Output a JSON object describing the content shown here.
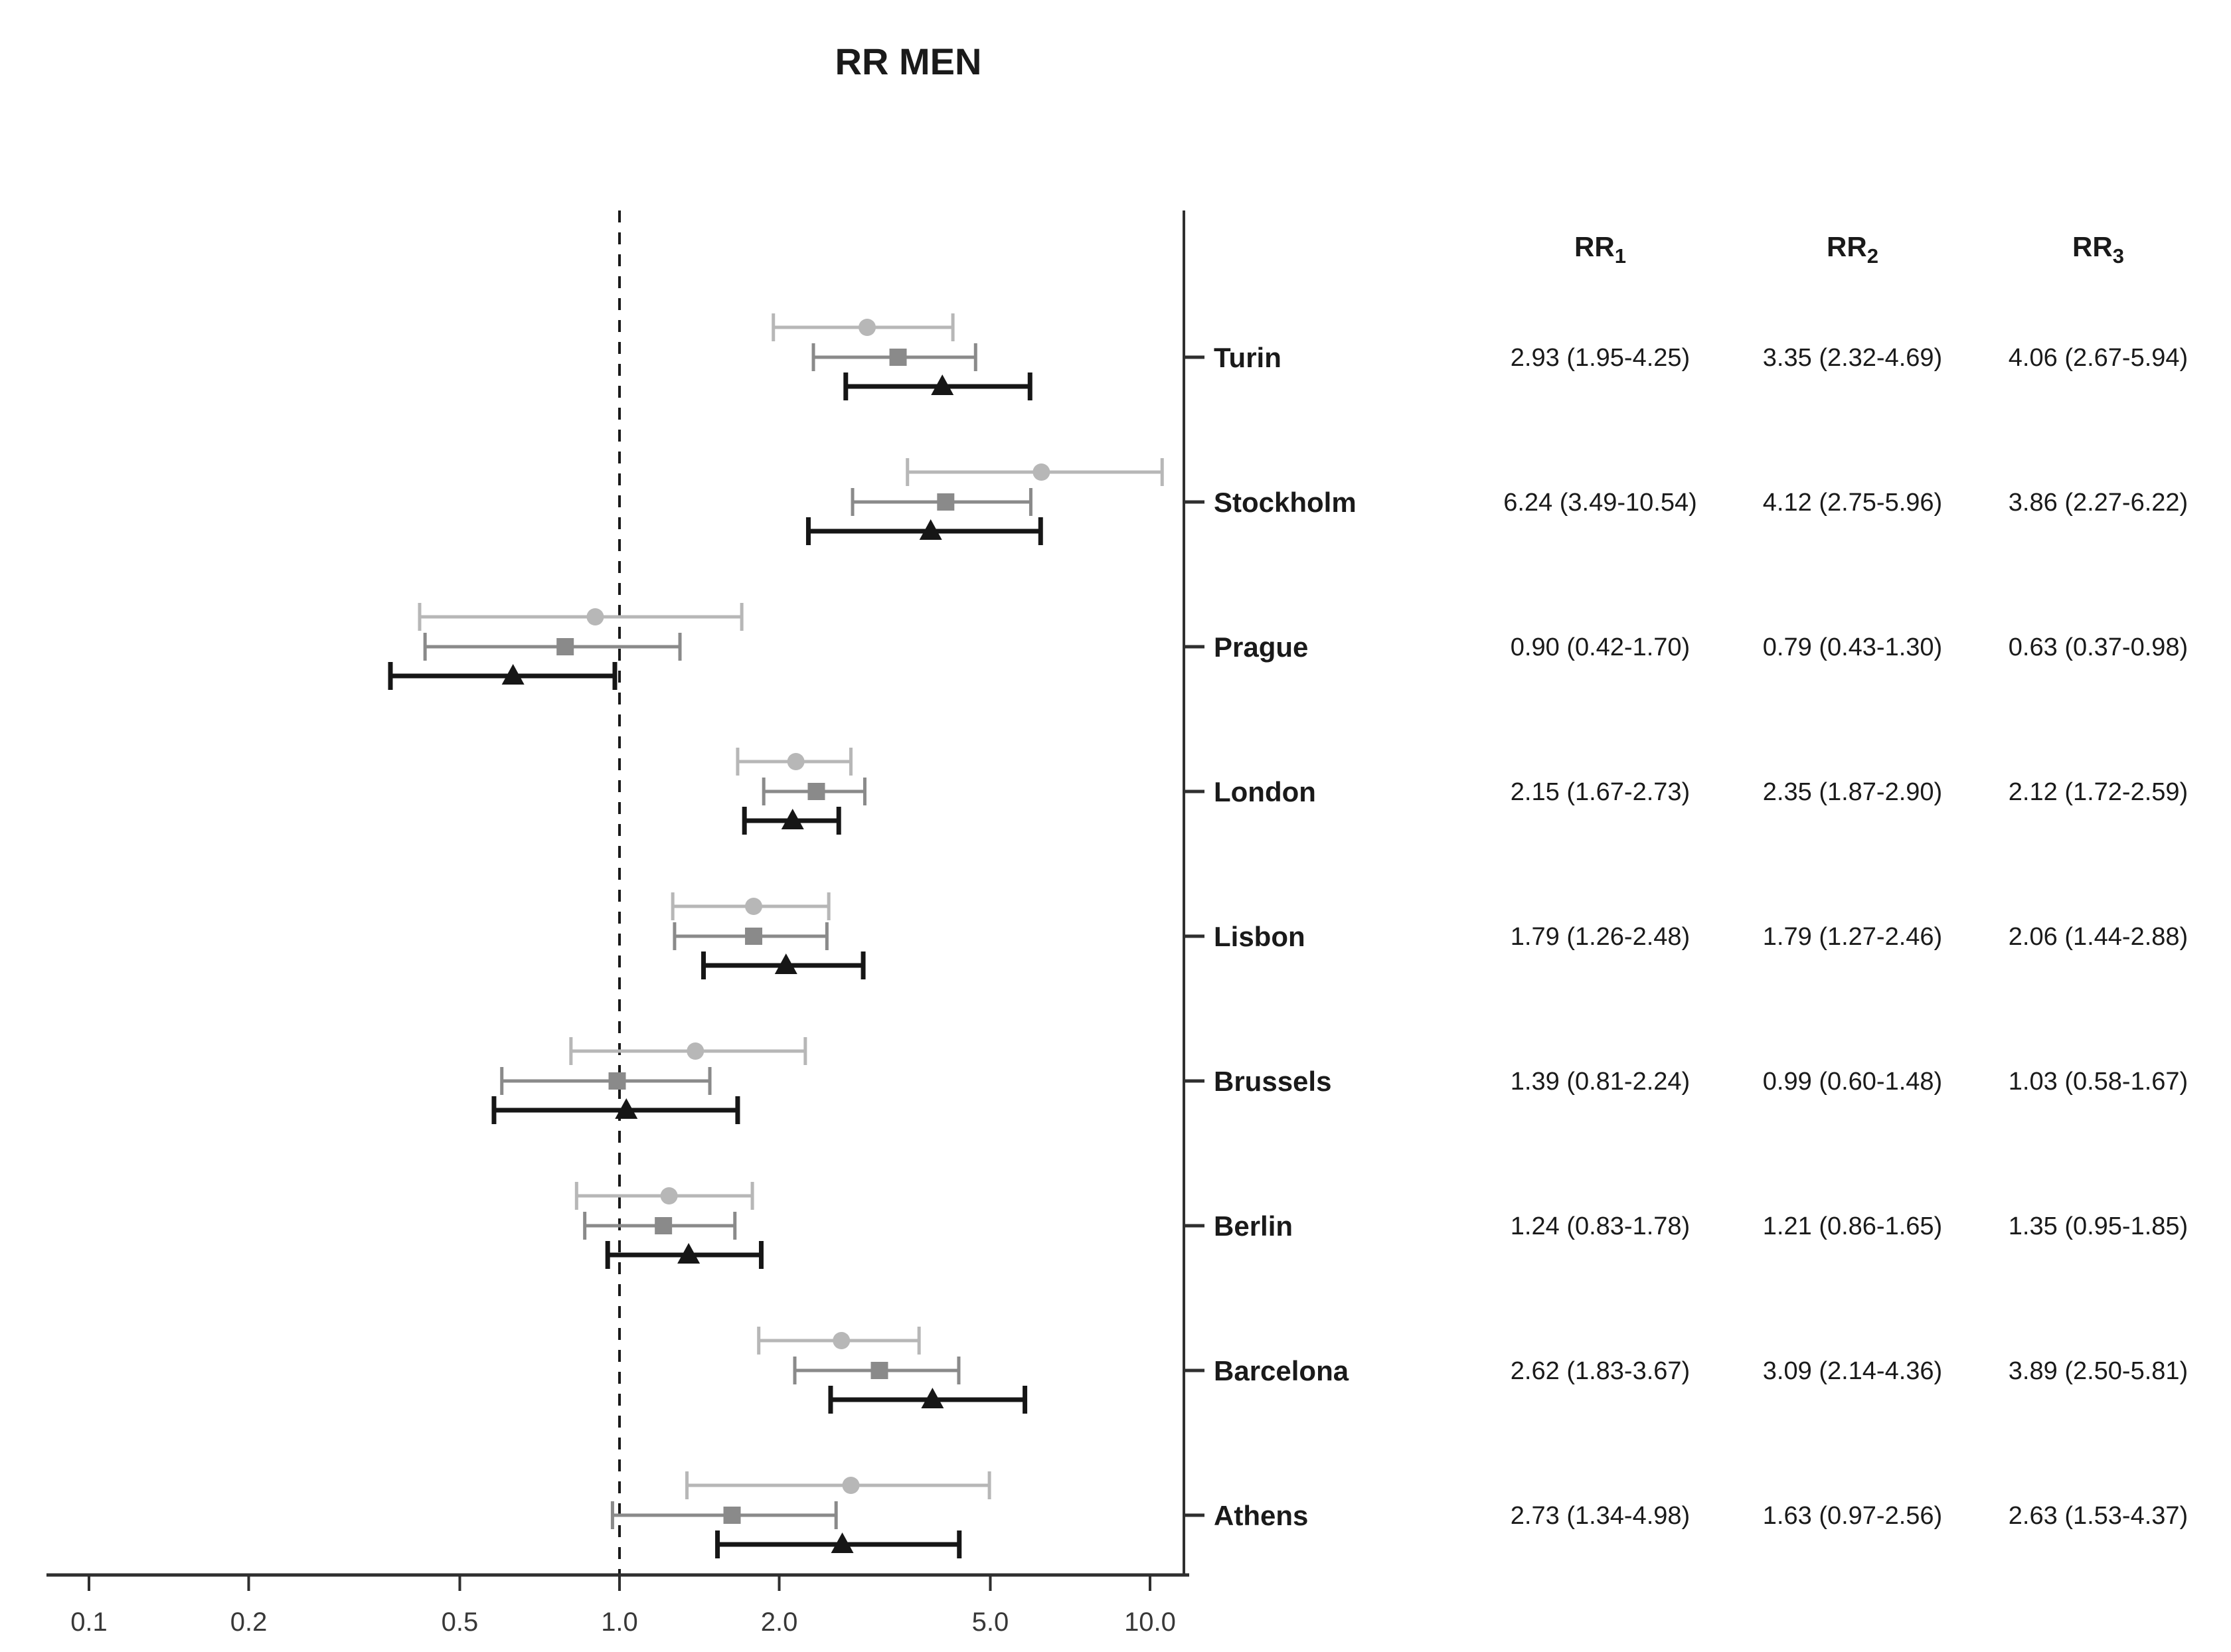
{
  "chart_data": {
    "type": "forest",
    "title": "RR MEN",
    "x_axis": {
      "scale": "log10",
      "ticks": [
        {
          "label": "0.1",
          "value": 0.1
        },
        {
          "label": "0.2",
          "value": 0.2
        },
        {
          "label": "0.5",
          "value": 0.5
        },
        {
          "label": "1.0",
          "value": 1.0
        },
        {
          "label": "2.0",
          "value": 2.0
        },
        {
          "label": "5.0",
          "value": 5.0
        },
        {
          "label": "10.0",
          "value": 10.0
        }
      ],
      "range": [
        0.08,
        11.5
      ],
      "reference_line": 1.0,
      "grid": false
    },
    "columns": [
      {
        "base": "RR",
        "sub": "1"
      },
      {
        "base": "RR",
        "sub": "2"
      },
      {
        "base": "RR",
        "sub": "3"
      }
    ],
    "series": [
      {
        "id": "rr1",
        "marker": "circle",
        "color": "#b7b7b7"
      },
      {
        "id": "rr2",
        "marker": "square",
        "color": "#8a8a8a"
      },
      {
        "id": "rr3",
        "marker": "triangle",
        "color": "#161616"
      }
    ],
    "rows": [
      {
        "city": "Turin",
        "values": [
          {
            "est": 2.93,
            "lo": 1.95,
            "hi": 4.25,
            "text": "2.93 (1.95-4.25)"
          },
          {
            "est": 3.35,
            "lo": 2.32,
            "hi": 4.69,
            "text": "3.35 (2.32-4.69)"
          },
          {
            "est": 4.06,
            "lo": 2.67,
            "hi": 5.94,
            "text": "4.06 (2.67-5.94)"
          }
        ]
      },
      {
        "city": "Stockholm",
        "values": [
          {
            "est": 6.24,
            "lo": 3.49,
            "hi": 10.54,
            "text": "6.24 (3.49-10.54)"
          },
          {
            "est": 4.12,
            "lo": 2.75,
            "hi": 5.96,
            "text": "4.12 (2.75-5.96)"
          },
          {
            "est": 3.86,
            "lo": 2.27,
            "hi": 6.22,
            "text": "3.86 (2.27-6.22)"
          }
        ]
      },
      {
        "city": "Prague",
        "values": [
          {
            "est": 0.9,
            "lo": 0.42,
            "hi": 1.7,
            "text": "0.90 (0.42-1.70)"
          },
          {
            "est": 0.79,
            "lo": 0.43,
            "hi": 1.3,
            "text": "0.79 (0.43-1.30)"
          },
          {
            "est": 0.63,
            "lo": 0.37,
            "hi": 0.98,
            "text": "0.63 (0.37-0.98)"
          }
        ]
      },
      {
        "city": "London",
        "values": [
          {
            "est": 2.15,
            "lo": 1.67,
            "hi": 2.73,
            "text": "2.15 (1.67-2.73)"
          },
          {
            "est": 2.35,
            "lo": 1.87,
            "hi": 2.9,
            "text": "2.35 (1.87-2.90)"
          },
          {
            "est": 2.12,
            "lo": 1.72,
            "hi": 2.59,
            "text": "2.12 (1.72-2.59)"
          }
        ]
      },
      {
        "city": "Lisbon",
        "values": [
          {
            "est": 1.79,
            "lo": 1.26,
            "hi": 2.48,
            "text": "1.79 (1.26-2.48)"
          },
          {
            "est": 1.79,
            "lo": 1.27,
            "hi": 2.46,
            "text": "1.79 (1.27-2.46)"
          },
          {
            "est": 2.06,
            "lo": 1.44,
            "hi": 2.88,
            "text": "2.06 (1.44-2.88)"
          }
        ]
      },
      {
        "city": "Brussels",
        "values": [
          {
            "est": 1.39,
            "lo": 0.81,
            "hi": 2.24,
            "text": "1.39 (0.81-2.24)"
          },
          {
            "est": 0.99,
            "lo": 0.6,
            "hi": 1.48,
            "text": "0.99 (0.60-1.48)"
          },
          {
            "est": 1.03,
            "lo": 0.58,
            "hi": 1.67,
            "text": "1.03 (0.58-1.67)"
          }
        ]
      },
      {
        "city": "Berlin",
        "values": [
          {
            "est": 1.24,
            "lo": 0.83,
            "hi": 1.78,
            "text": "1.24 (0.83-1.78)"
          },
          {
            "est": 1.21,
            "lo": 0.86,
            "hi": 1.65,
            "text": "1.21 (0.86-1.65)"
          },
          {
            "est": 1.35,
            "lo": 0.95,
            "hi": 1.85,
            "text": "1.35 (0.95-1.85)"
          }
        ]
      },
      {
        "city": "Barcelona",
        "values": [
          {
            "est": 2.62,
            "lo": 1.83,
            "hi": 3.67,
            "text": "2.62 (1.83-3.67)"
          },
          {
            "est": 3.09,
            "lo": 2.14,
            "hi": 4.36,
            "text": "3.09 (2.14-4.36)"
          },
          {
            "est": 3.89,
            "lo": 2.5,
            "hi": 5.81,
            "text": "3.89 (2.50-5.81)"
          }
        ]
      },
      {
        "city": "Athens",
        "values": [
          {
            "est": 2.73,
            "lo": 1.34,
            "hi": 4.98,
            "text": "2.73 (1.34-4.98)"
          },
          {
            "est": 1.63,
            "lo": 0.97,
            "hi": 2.56,
            "text": "1.63 (0.97-2.56)"
          },
          {
            "est": 2.63,
            "lo": 1.53,
            "hi": 4.37,
            "text": "2.63 (1.53-4.37)"
          }
        ]
      }
    ],
    "colors": {
      "axis": "#2f2f2f",
      "reference_line": "#1a1a1a",
      "text": "#1a1a1a"
    }
  }
}
